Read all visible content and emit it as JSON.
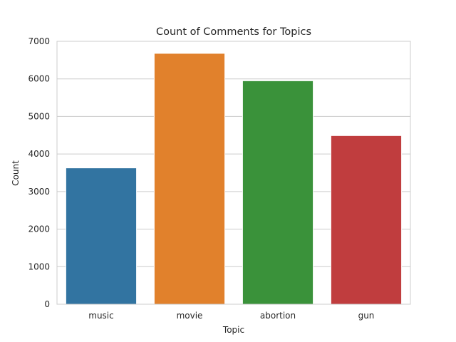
{
  "chart_data": {
    "type": "bar",
    "title": "Count of Comments for Topics",
    "xlabel": "Topic",
    "ylabel": "Count",
    "categories": [
      "music",
      "movie",
      "abortion",
      "gun"
    ],
    "values": [
      3630,
      6680,
      5950,
      4490
    ],
    "ylim": [
      0,
      7000
    ],
    "yticks": [
      0,
      1000,
      2000,
      3000,
      4000,
      5000,
      6000,
      7000
    ],
    "colors": [
      "#3274a1",
      "#e1812c",
      "#3a923a",
      "#c03d3e"
    ],
    "grid": true,
    "grid_color": "#cccccc",
    "legend": "none"
  }
}
